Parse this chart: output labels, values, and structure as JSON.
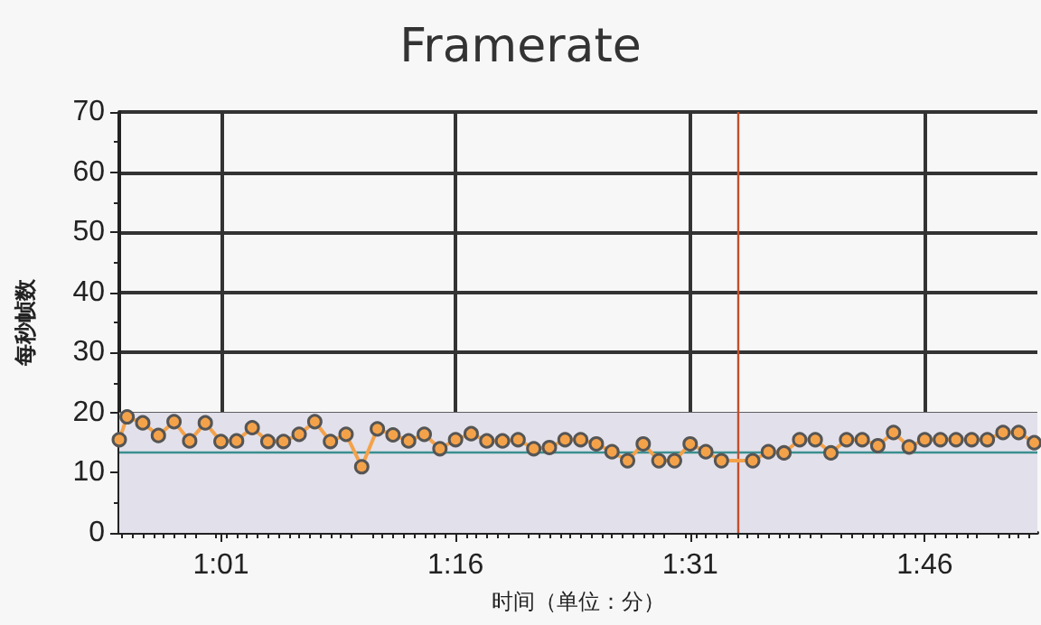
{
  "chart_data": {
    "type": "line",
    "title": "Framerate",
    "xlabel": "时间（单位：分）",
    "ylabel": "每秒帧数",
    "x": [
      54.5,
      55,
      56,
      57,
      58,
      59,
      60,
      61,
      62,
      63,
      64,
      65,
      66,
      67,
      68,
      69,
      70,
      71,
      72,
      73,
      74,
      75,
      76,
      77,
      78,
      79,
      80,
      81,
      82,
      83,
      84,
      85,
      86,
      87,
      88,
      89,
      90,
      91,
      92,
      93,
      95,
      96,
      97,
      98,
      99,
      100,
      101,
      102,
      103,
      104,
      105,
      106,
      107,
      108,
      109,
      110,
      111,
      112,
      113
    ],
    "series": [
      {
        "color": "#f4a24a",
        "values": [
          15.5,
          19.3,
          18.3,
          16.2,
          18.5,
          15.3,
          18.3,
          15.2,
          15.3,
          17.5,
          15.2,
          15.2,
          16.4,
          18.5,
          15.2,
          16.4,
          11,
          17.3,
          16.3,
          15.3,
          16.4,
          14,
          15.5,
          16.5,
          15.3,
          15.3,
          15.5,
          14,
          14.2,
          15.5,
          15.5,
          14.8,
          13.5,
          12,
          14.8,
          12,
          12,
          14.8,
          13.5,
          12,
          12,
          13.5,
          13.3,
          15.5,
          15.5,
          13.3,
          15.5,
          15.5,
          14.5,
          16.7,
          14.3,
          15.5,
          15.5,
          15.5,
          15.5,
          15.5,
          16.7,
          16.7,
          15
        ]
      }
    ],
    "xlim": [
      54.5,
      113.2
    ],
    "xticks": [
      {
        "value": 61,
        "label": "1:01"
      },
      {
        "value": 76,
        "label": "1:16"
      },
      {
        "value": 91,
        "label": "1:31"
      },
      {
        "value": 106,
        "label": "1:46"
      }
    ],
    "ylim": [
      0,
      70
    ],
    "yticks": [
      0,
      10,
      20,
      30,
      40,
      50,
      60,
      70
    ],
    "grid": true,
    "marker": "circle",
    "line_style": "solid",
    "ref_lines": [
      {
        "axis": "y",
        "value": 13.3,
        "color": "#3a9090"
      },
      {
        "axis": "x",
        "value": 94,
        "color": "#c0502e"
      }
    ],
    "bands": [
      {
        "axis": "y",
        "from": 0,
        "to": 20,
        "color": "#e2e0ea"
      }
    ]
  }
}
